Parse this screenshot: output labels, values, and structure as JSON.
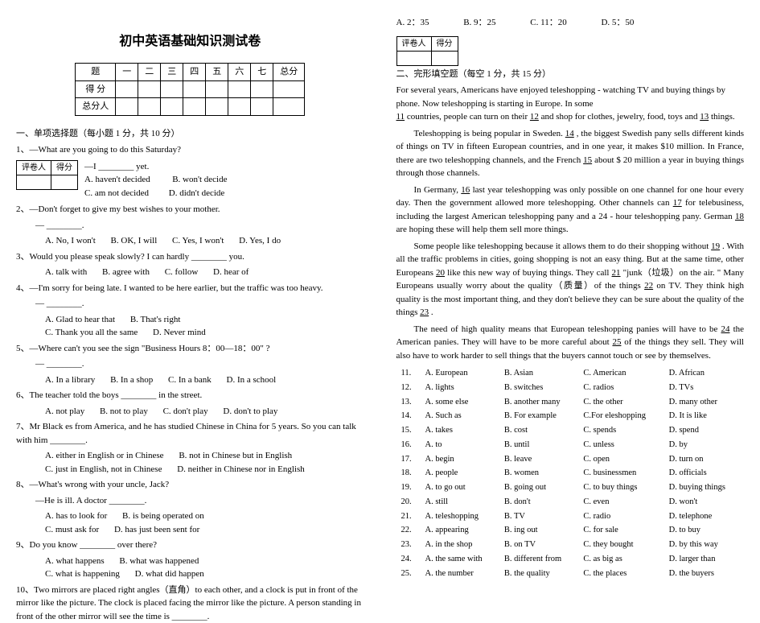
{
  "title": "初中英语基础知识测试卷",
  "scoreTable": {
    "headers": [
      "题",
      "一",
      "二",
      "三",
      "四",
      "五",
      "六",
      "七",
      "总分"
    ],
    "row1": "得 分",
    "row2": "总分人"
  },
  "graderBox": {
    "col1": "评卷人",
    "col2": "得分"
  },
  "section1": {
    "head": "一、单项选择题（每小题 1 分，共 10 分）",
    "q1": "1、—What are you going to do this Saturday?",
    "q1line": "—I ________ yet.",
    "q1opts": [
      "A. haven't decided",
      "B. won't decide",
      "C. am not decided",
      "D. didn't"
    ],
    "q1tail": "decide",
    "q2": "2、—Don't forget to give my best wishes to your mother.",
    "q2line": "— ________.",
    "q2opts": [
      "A. No, I won't",
      "B. OK, I will",
      "C. Yes, I won't",
      "D. Yes, I do"
    ],
    "q3": "3、Would you please speak slowly? I can hardly ________ you.",
    "q3opts": [
      "A. talk with",
      "B. agree with",
      "C. follow",
      "D. hear of"
    ],
    "q4": "4、—I'm sorry for being late. I wanted to be here earlier, but the traffic was too heavy.",
    "q4line": "— ________.",
    "q4opts": [
      "A. Glad to hear that",
      "B. That's right"
    ],
    "q4opts2": [
      "C. Thank you all the same",
      "D. Never mind"
    ],
    "q5": "5、—Where can't you see the sign \"Business Hours 8：00—18：00\" ?",
    "q5line": "— ________.",
    "q5opts": [
      "A. In a library",
      "B. In a shop",
      "C. In a bank",
      "D. In a school"
    ],
    "q6": "6、The teacher told the boys ________ in the street.",
    "q6opts": [
      "A. not play",
      "B. not to play",
      "C. don't play",
      "D. don't to play"
    ],
    "q7": "7、Mr Black es from America, and he has studied Chinese in China for 5 years. So you can talk with him ________.",
    "q7opts": [
      "A. either in English or in Chinese",
      "B. not in Chinese but in English"
    ],
    "q7opts2": [
      "C. just in English, not in Chinese",
      "D. neither in Chinese nor in English"
    ],
    "q8": "8、—What's wrong with your uncle, Jack?",
    "q8line": "—He is ill. A doctor ________.",
    "q8opts": [
      "A. has to look for",
      "B. is being operated on"
    ],
    "q8opts2": [
      "C. must ask for",
      "D. has just been sent for"
    ],
    "q9": "9、Do you know ________ over there?",
    "q9opts": [
      "A. what happens",
      "B. what was happened"
    ],
    "q9opts2": [
      "C. what is happening",
      "D. what did happen"
    ],
    "q10": "10、Two mirrors are placed right angles（直角）to each other, and a clock is put in front of the mirror like the picture. The clock is placed facing the mirror like the picture. A person standing in front of the other mirror will see the time is ________."
  },
  "q10opts": [
    "A. 2：35",
    "B. 9：25",
    "C. 11：20",
    "D. 5：50"
  ],
  "section2": {
    "head": "二、完形填空题（每空 1 分，共 15 分）",
    "p1a": "For several years, Americans have enjoyed teleshopping - watching TV and buying things by phone. Now teleshopping is starting in Europe. In some ",
    "p1b": " countries, people can turn on their ",
    "p1c": " and shop for clothes, jewelry, food, toys and ",
    "p1d": " things.",
    "p2a": "Teleshopping is being popular in Sweden. ",
    "p2b": " , the biggest Swedish pany sells different kinds of things on TV in fifteen European countries, and in one year, it makes $10 million. In France, there are two teleshopping channels, and the French ",
    "p2c": " about $ 20 million a year in buying things through those channels.",
    "p3a": "In Germany, ",
    "p3b": " last year teleshopping was only possible on one channel for one hour every day. Then the government allowed more teleshopping. Other channels can ",
    "p3c": " for telebusiness, including the largest American teleshopping pany and a 24 - hour teleshopping pany. German ",
    "p3d": " are hoping these will help them sell more things.",
    "p4a": "Some people like teleshopping because it allows them to do their shopping without ",
    "p4b": ". With all the traffic problems in cities, going shopping is not an easy thing. But at the same time, other Europeans ",
    "p4c": " like this new way of buying things. They call",
    "p4d": " \"junk（垃圾）on the air. \" Many Europeans usually worry about the quality（质量）of the things ",
    "p4e": " on TV. They think high quality is the most important thing, and they don't believe they can be sure about the quality of the things ",
    "p4f": ".",
    "p5a": "The need of high quality means that European teleshopping panies will have to be ",
    "p5b": " the American panies. They will have to be more careful about",
    "p5c": " of the things they sell. They will also have to work harder to sell things that the buyers cannot touch or see by themselves.",
    "blanks": {
      "11": "11",
      "12": "12",
      "13": "13",
      "14": "14",
      "15": "15",
      "16": "16",
      "17": "17",
      "18": "18",
      "19": "19",
      "20": "20",
      "21": "21",
      "22": "22",
      "23": "23",
      "24": "24",
      "25": "25"
    },
    "cloze": [
      {
        "n": "11.",
        "a": "A. European",
        "b": "B. Asian",
        "c": "C. American",
        "d": "D. African"
      },
      {
        "n": "12.",
        "a": "A. lights",
        "b": "B. switches",
        "c": "C. radios",
        "d": "D. TVs"
      },
      {
        "n": "13.",
        "a": "A. some else",
        "b": "B. another many",
        "c": "C. the other",
        "d": "D. many other"
      },
      {
        "n": "14.",
        "a": "A. Such as",
        "b": "B. For example",
        "c": "C.For eleshopping",
        "d": "D. It is like"
      },
      {
        "n": "15.",
        "a": "A. takes",
        "b": "B. cost",
        "c": "C. spends",
        "d": "D. spend"
      },
      {
        "n": "16.",
        "a": "A. to",
        "b": "B. until",
        "c": "C. unless",
        "d": "D. by"
      },
      {
        "n": "17.",
        "a": "A. begin",
        "b": "B. leave",
        "c": "C. open",
        "d": "D. turn on"
      },
      {
        "n": "18.",
        "a": "A. people",
        "b": "B. women",
        "c": "C. businessmen",
        "d": "D. officials"
      },
      {
        "n": "19.",
        "a": "A. to go out",
        "b": "B. going out",
        "c": "C. to buy things",
        "d": "D. buying things"
      },
      {
        "n": "20.",
        "a": "A. still",
        "b": "B. don't",
        "c": "C. even",
        "d": "D. won't"
      },
      {
        "n": "21.",
        "a": "A. teleshopping",
        "b": "B. TV",
        "c": "C. radio",
        "d": "D. telephone"
      },
      {
        "n": "22.",
        "a": "A. appearing",
        "b": "B. ing out",
        "c": "C. for sale",
        "d": "D. to buy"
      },
      {
        "n": "23.",
        "a": "A. in the shop",
        "b": "B. on TV",
        "c": "C. they bought",
        "d": "D. by this way"
      },
      {
        "n": "24.",
        "a": "A. the same with",
        "b": "B. different from",
        "c": "C. as big as",
        "d": "D. larger than"
      },
      {
        "n": "25.",
        "a": "A. the number",
        "b": "B. the quality",
        "c": "C. the places",
        "d": "D. the buyers"
      }
    ]
  }
}
